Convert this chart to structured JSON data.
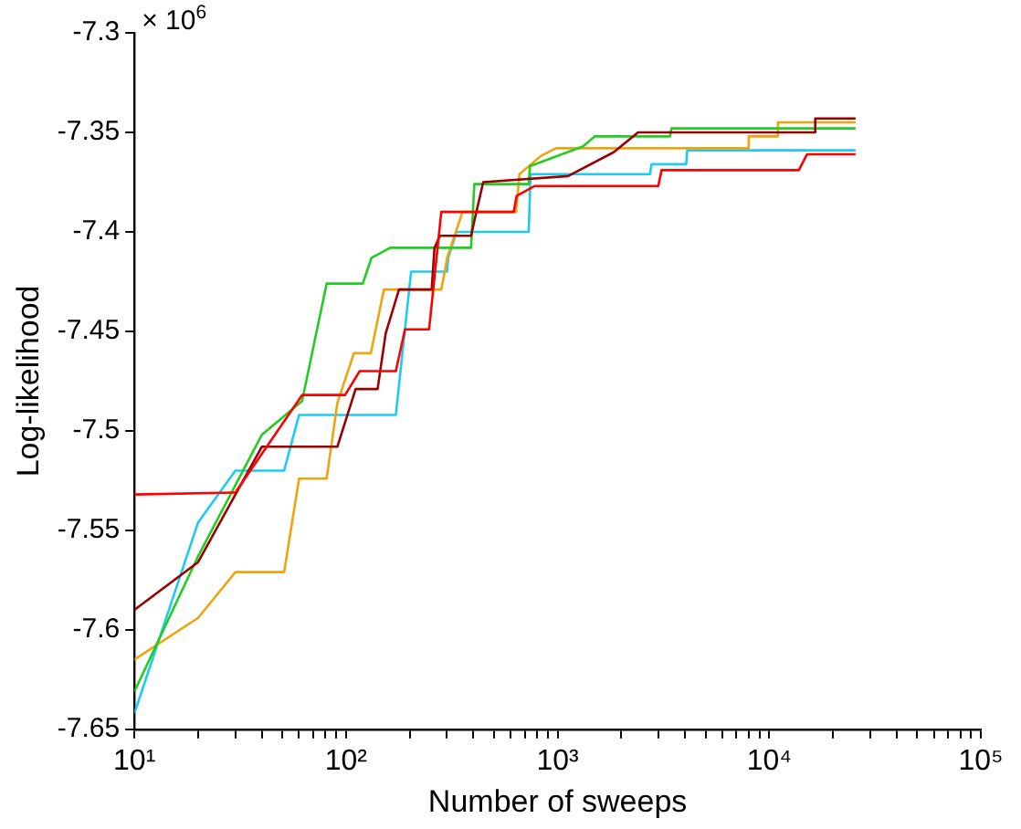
{
  "chart_data": {
    "type": "line",
    "xlabel": "Number of sweeps",
    "ylabel": "Log-likelihood",
    "annotations": [
      "× 10$^{6}$"
    ],
    "log": "x",
    "grid": false,
    "legend": false,
    "marker": "none",
    "line_style": "solid",
    "xlim": [
      10,
      100000
    ],
    "ylim": [
      -7.65,
      -7.3
    ],
    "xticks": [
      {
        "value": 10,
        "label": "10¹"
      },
      {
        "value": 20,
        "label": null
      },
      {
        "value": 30,
        "label": null
      },
      {
        "value": 40,
        "label": null
      },
      {
        "value": 50,
        "label": null
      },
      {
        "value": 60,
        "label": null
      },
      {
        "value": 70,
        "label": null
      },
      {
        "value": 80,
        "label": null
      },
      {
        "value": 90,
        "label": null
      },
      {
        "value": 100,
        "label": "10²"
      },
      {
        "value": 200,
        "label": null
      },
      {
        "value": 300,
        "label": null
      },
      {
        "value": 400,
        "label": null
      },
      {
        "value": 500,
        "label": null
      },
      {
        "value": 600,
        "label": null
      },
      {
        "value": 700,
        "label": null
      },
      {
        "value": 800,
        "label": null
      },
      {
        "value": 900,
        "label": null
      },
      {
        "value": 1000,
        "label": "10³"
      },
      {
        "value": 2000,
        "label": null
      },
      {
        "value": 3000,
        "label": null
      },
      {
        "value": 4000,
        "label": null
      },
      {
        "value": 5000,
        "label": null
      },
      {
        "value": 6000,
        "label": null
      },
      {
        "value": 7000,
        "label": null
      },
      {
        "value": 8000,
        "label": null
      },
      {
        "value": 9000,
        "label": null
      },
      {
        "value": 10000,
        "label": "10⁴"
      },
      {
        "value": 20000,
        "label": null
      },
      {
        "value": 30000,
        "label": null
      },
      {
        "value": 40000,
        "label": null
      },
      {
        "value": 50000,
        "label": null
      },
      {
        "value": 60000,
        "label": null
      },
      {
        "value": 70000,
        "label": null
      },
      {
        "value": 80000,
        "label": null
      },
      {
        "value": 90000,
        "label": null
      },
      {
        "value": 100000,
        "label": "10⁵"
      }
    ],
    "yticks": [
      -7.65,
      -7.6,
      -7.55,
      -7.5,
      -7.45,
      -7.4,
      -7.35,
      -7.3
    ],
    "series": [
      {
        "color": "#ff0000",
        "x": [
          10,
          30,
          62,
          99,
          116,
          172,
          190,
          247,
          282,
          620,
          640,
          777,
          2990,
          3100,
          13800,
          15100,
          25600
        ],
        "values": [
          -7.532,
          -7.531,
          -7.482,
          -7.482,
          -7.47,
          -7.47,
          -7.449,
          -7.449,
          -7.39,
          -7.39,
          -7.382,
          -7.377,
          -7.377,
          -7.369,
          -7.369,
          -7.361,
          -7.361
        ]
      },
      {
        "color": "#990000",
        "x": [
          10,
          20,
          40,
          91,
          111,
          141,
          154,
          178,
          254,
          262,
          278,
          390,
          405,
          445,
          1120,
          1840,
          2400,
          16400,
          16500,
          25600
        ],
        "values": [
          -7.59,
          -7.566,
          -7.508,
          -7.508,
          -7.479,
          -7.479,
          -7.451,
          -7.429,
          -7.429,
          -7.408,
          -7.402,
          -7.402,
          -7.394,
          -7.375,
          -7.372,
          -7.36,
          -7.35,
          -7.35,
          -7.343,
          -7.343
        ]
      },
      {
        "color": "#22cc22",
        "x": [
          10,
          20,
          40,
          62,
          81,
          120,
          132,
          162,
          390,
          404,
          730,
          740,
          1320,
          1500,
          3400,
          3450,
          25600
        ],
        "values": [
          -7.631,
          -7.563,
          -7.502,
          -7.485,
          -7.426,
          -7.426,
          -7.413,
          -7.408,
          -7.408,
          -7.376,
          -7.376,
          -7.367,
          -7.357,
          -7.352,
          -7.352,
          -7.348,
          -7.348
        ]
      },
      {
        "color": "#f0a30a",
        "x": [
          10,
          20,
          30,
          51,
          60,
          81,
          91,
          109,
          131,
          151,
          282,
          301,
          355,
          636,
          660,
          830,
          980,
          7900,
          8000,
          10800,
          11000,
          25600
        ],
        "values": [
          -7.615,
          -7.594,
          -7.571,
          -7.571,
          -7.524,
          -7.524,
          -7.486,
          -7.461,
          -7.461,
          -7.429,
          -7.429,
          -7.413,
          -7.39,
          -7.39,
          -7.371,
          -7.362,
          -7.358,
          -7.358,
          -7.352,
          -7.352,
          -7.345,
          -7.345
        ]
      },
      {
        "color": "#1ecbf0",
        "x": [
          10,
          20,
          30,
          51,
          60,
          172,
          203,
          300,
          304,
          333,
          730,
          745,
          2730,
          2780,
          4050,
          4100,
          25600
        ],
        "values": [
          -7.642,
          -7.546,
          -7.52,
          -7.52,
          -7.492,
          -7.492,
          -7.42,
          -7.42,
          -7.413,
          -7.4,
          -7.4,
          -7.371,
          -7.371,
          -7.366,
          -7.366,
          -7.359,
          -7.359
        ]
      }
    ]
  }
}
